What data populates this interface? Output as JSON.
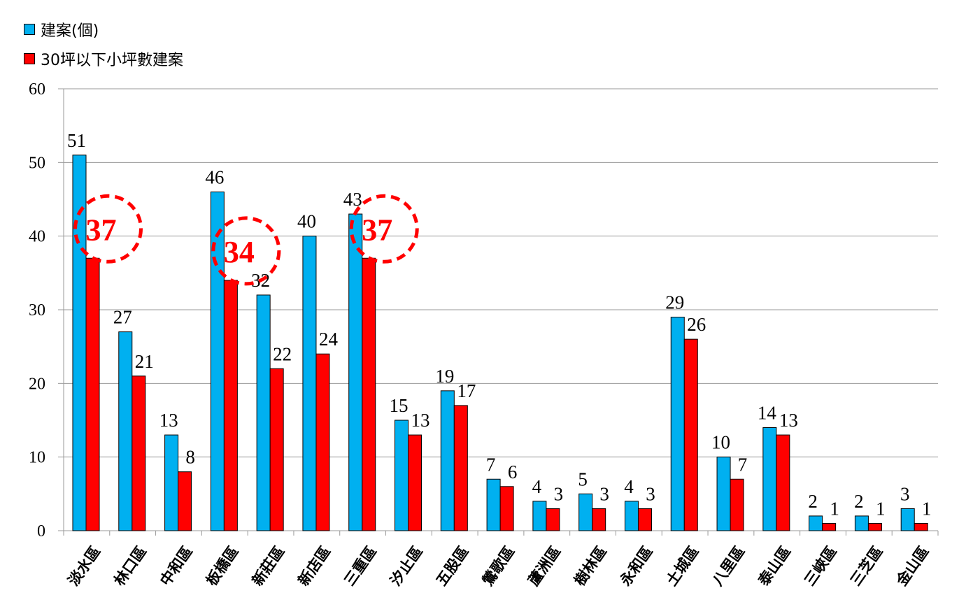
{
  "chart_data": {
    "type": "bar",
    "title": "",
    "xlabel": "",
    "ylabel": "",
    "ylim": [
      0,
      60
    ],
    "yticks": [
      0,
      10,
      20,
      30,
      40,
      50,
      60
    ],
    "grid": true,
    "legend_position": "top-left",
    "categories": [
      "淡水區",
      "林口區",
      "中和區",
      "板橋區",
      "新莊區",
      "新店區",
      "三重區",
      "汐止區",
      "五股區",
      "鶯歌區",
      "蘆洲區",
      "樹林區",
      "永和區",
      "土城區",
      "八里區",
      "泰山區",
      "三峽區",
      "三芝區",
      "金山區"
    ],
    "series": [
      {
        "name": "建案(個)",
        "color": "#00B0F0",
        "values": [
          51,
          27,
          13,
          46,
          32,
          40,
          43,
          15,
          19,
          7,
          4,
          5,
          4,
          29,
          10,
          14,
          2,
          2,
          3
        ]
      },
      {
        "name": "30坪以下小坪數建案",
        "color": "#FF0000",
        "values": [
          37,
          21,
          8,
          34,
          22,
          24,
          37,
          13,
          17,
          6,
          3,
          3,
          3,
          26,
          7,
          13,
          1,
          1,
          1
        ]
      }
    ],
    "annotations": [
      {
        "category": "淡水區",
        "text": "37",
        "style": "dashed red circle"
      },
      {
        "category": "板橋區",
        "text": "34",
        "style": "dashed red circle"
      },
      {
        "category": "三重區",
        "text": "37",
        "style": "dashed red circle"
      }
    ]
  }
}
